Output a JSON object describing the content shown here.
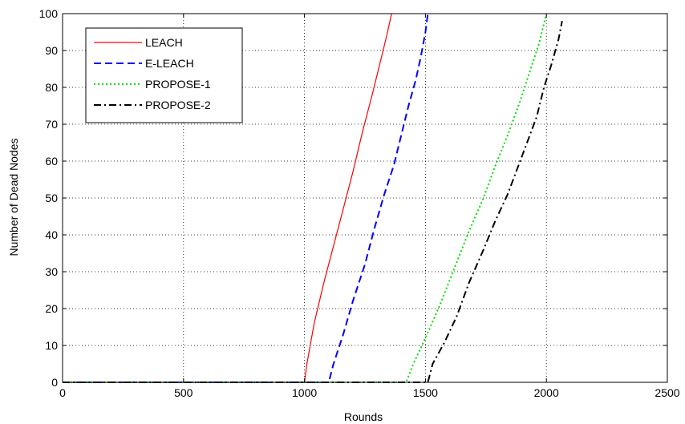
{
  "chart_data": {
    "type": "line",
    "title": "",
    "xlabel": "Rounds",
    "ylabel": "Number of Dead Nodes",
    "xlim": [
      0,
      2500
    ],
    "ylim": [
      0,
      100
    ],
    "xticks": [
      "0",
      "500",
      "1000",
      "1500",
      "2000",
      "2500"
    ],
    "yticks": [
      "0",
      "10",
      "20",
      "30",
      "40",
      "50",
      "60",
      "70",
      "80",
      "90",
      "100"
    ],
    "grid": true,
    "legend_position": "top-left",
    "series": [
      {
        "name": "LEACH",
        "color": "#ff0000",
        "style": "solid",
        "x": [
          0,
          1000,
          1010,
          1040,
          1080,
          1120,
          1160,
          1200,
          1240,
          1280,
          1310,
          1340,
          1360
        ],
        "y": [
          0,
          0,
          5,
          16,
          27,
          37,
          47,
          57,
          68,
          78,
          86,
          94,
          100
        ]
      },
      {
        "name": "E-LEACH",
        "color": "#0000ff",
        "style": "dashed",
        "x": [
          0,
          1100,
          1120,
          1160,
          1200,
          1250,
          1290,
          1330,
          1370,
          1400,
          1430,
          1460,
          1480,
          1500,
          1510
        ],
        "y": [
          0,
          0,
          5,
          13,
          22,
          32,
          42,
          51,
          59,
          67,
          75,
          82,
          88,
          95,
          100
        ]
      },
      {
        "name": "PROPOSE-1",
        "color": "#00dd00",
        "style": "dotted",
        "x": [
          0,
          1420,
          1450,
          1500,
          1560,
          1620,
          1680,
          1740,
          1790,
          1840,
          1890,
          1930,
          1970,
          2000
        ],
        "y": [
          0,
          0,
          5,
          12,
          21,
          31,
          41,
          50,
          59,
          67,
          76,
          84,
          92,
          100
        ]
      },
      {
        "name": "PROPOSE-2",
        "color": "#000000",
        "style": "dashdot",
        "x": [
          0,
          1510,
          1530,
          1580,
          1630,
          1680,
          1740,
          1790,
          1840,
          1880,
          1920,
          1960,
          1990,
          2020,
          2050,
          2065
        ],
        "y": [
          0,
          0,
          5,
          11,
          18,
          27,
          36,
          44,
          51,
          58,
          65,
          72,
          80,
          86,
          93,
          98
        ]
      }
    ]
  }
}
